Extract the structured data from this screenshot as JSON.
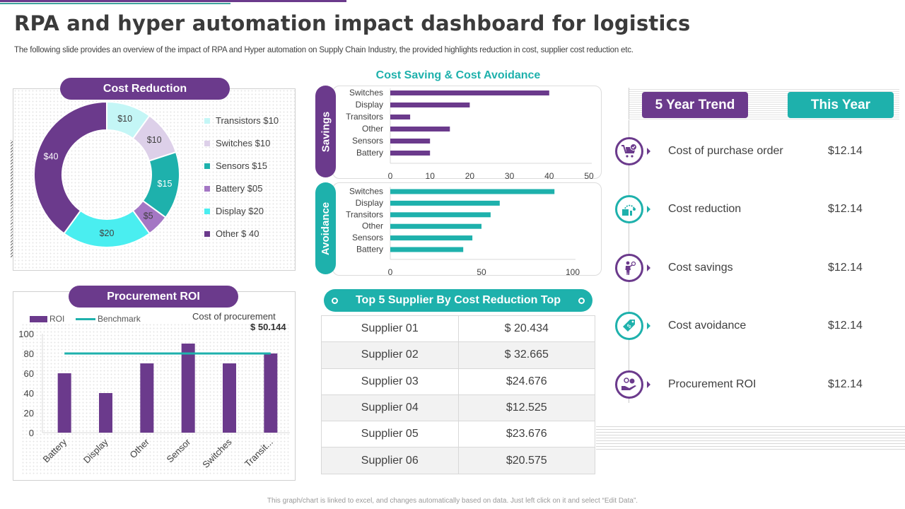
{
  "header": {
    "title": "RPA and hyper automation impact dashboard for logistics",
    "subtitle": "The following slide provides an overview of the impact of RPA and Hyper automation  on Supply Chain Industry, the provided highlights reduction in cost, supplier cost reduction etc."
  },
  "footer": "This graph/chart is linked to excel, and changes automatically based on data. Just left click on it and select “Edit Data”.",
  "colors": {
    "purple": "#6b3a8c",
    "teal": "#1eb1ac",
    "light_teal": "#c4f6f6",
    "lavender": "#ddd0e9",
    "medium_purple": "#a477c4",
    "cyan": "#4aeef0"
  },
  "chart_data": [
    {
      "id": "cost-reduction",
      "type": "pie",
      "title": "Cost Reduction",
      "donut": true,
      "slices": [
        {
          "name": "Transistors",
          "value": 10,
          "label": "$10",
          "legend": "Transistors $10",
          "color": "#c4f6f6"
        },
        {
          "name": "Switches",
          "value": 10,
          "label": "$10",
          "legend": "Switches $10",
          "color": "#ddd0e9"
        },
        {
          "name": "Sensors",
          "value": 15,
          "label": "$15",
          "legend": "Sensors $15",
          "color": "#1eb1ac"
        },
        {
          "name": "Battery",
          "value": 5,
          "label": "$5",
          "legend": "Battery $05",
          "color": "#a477c4"
        },
        {
          "name": "Display",
          "value": 20,
          "label": "$20",
          "legend": "Display $20",
          "color": "#4aeef0"
        },
        {
          "name": "Other",
          "value": 40,
          "label": "$40",
          "legend": "Other $ 40",
          "color": "#6b3a8c"
        }
      ],
      "legend_position": "right"
    },
    {
      "id": "procurement-roi",
      "type": "bar",
      "title": "Procurement ROI",
      "categories": [
        "Battery",
        "Display",
        "Other",
        "Sensor",
        "Switches",
        "Transit..."
      ],
      "series": [
        {
          "name": "ROI",
          "kind": "bar",
          "values": [
            60,
            40,
            70,
            90,
            70,
            80
          ],
          "color": "#6b3a8c"
        },
        {
          "name": "Benchmark",
          "kind": "line",
          "values": [
            80,
            80,
            80,
            80,
            80,
            80
          ],
          "color": "#1eb1ac"
        }
      ],
      "ylim": [
        0,
        100
      ],
      "yticks": [
        0,
        20,
        40,
        60,
        80,
        100
      ],
      "xlabel": "",
      "ylabel": "",
      "legend_position": "top-left",
      "annotation": {
        "label": "Cost of procurement",
        "value": "$ 50.144"
      }
    },
    {
      "id": "cost-saving",
      "type": "bar",
      "orientation": "horizontal",
      "title": "Cost Saving & Cost Avoidance",
      "panel_label": "Savings",
      "categories": [
        "Switches",
        "Display",
        "Transitors",
        "Other",
        "Sensors",
        "Battery"
      ],
      "values": [
        40,
        20,
        5,
        15,
        10,
        10
      ],
      "xlim": [
        0,
        50
      ],
      "xticks": [
        0,
        10,
        20,
        30,
        40,
        50
      ],
      "color": "#6b3a8c"
    },
    {
      "id": "cost-avoidance",
      "type": "bar",
      "orientation": "horizontal",
      "panel_label": "Avoidance",
      "categories": [
        "Switches",
        "Display",
        "Transitors",
        "Other",
        "Sensors",
        "Battery"
      ],
      "values": [
        90,
        60,
        55,
        50,
        45,
        40
      ],
      "xlim": [
        0,
        100
      ],
      "xticks": [
        0,
        50,
        100
      ],
      "color": "#1eb1ac"
    }
  ],
  "suppliers": {
    "title": "Top 5 Supplier By Cost Reduction Top",
    "rows": [
      {
        "name": "Supplier 01",
        "value": "$ 20.434"
      },
      {
        "name": "Supplier 02",
        "value": "$ 32.665"
      },
      {
        "name": "Supplier 03",
        "value": "$24.676"
      },
      {
        "name": "Supplier 04",
        "value": "$12.525"
      },
      {
        "name": "Supplier 05",
        "value": "$23.676"
      },
      {
        "name": "Supplier 06",
        "value": "$20.575"
      }
    ]
  },
  "trend": {
    "tabs": [
      {
        "label": "5 Year Trend"
      },
      {
        "label": "This Year"
      }
    ],
    "metrics": [
      {
        "label": "Cost of purchase order",
        "value": "$12.14",
        "icon": "shopping-cart-check-icon",
        "color": "#6b3a8c"
      },
      {
        "label": "Cost reduction",
        "value": "$12.14",
        "icon": "cost-reduction-gear-icon",
        "color": "#1eb1ac"
      },
      {
        "label": "Cost savings",
        "value": "$12.14",
        "icon": "person-coin-icon",
        "color": "#6b3a8c"
      },
      {
        "label": "Cost avoidance",
        "value": "$12.14",
        "icon": "price-tag-dollar-icon",
        "color": "#1eb1ac"
      },
      {
        "label": "Procurement  ROI",
        "value": "$12.14",
        "icon": "hand-coins-icon",
        "color": "#6b3a8c"
      }
    ]
  }
}
